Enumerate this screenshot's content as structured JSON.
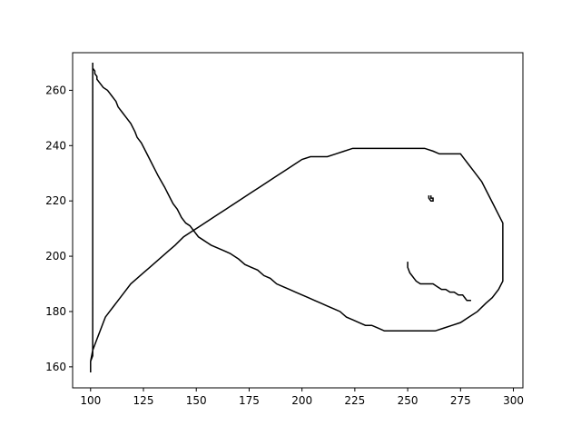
{
  "chart_data": {
    "type": "line",
    "title": "",
    "xlabel": "",
    "ylabel": "",
    "xlim": [
      91.5,
      304.5
    ],
    "ylim": [
      152.4,
      273.6
    ],
    "grid": false,
    "legend": "none",
    "line_color": "#000000",
    "x_ticks": [
      100,
      125,
      150,
      175,
      200,
      225,
      250,
      275,
      300
    ],
    "x_tick_labels": [
      "100",
      "125",
      "150",
      "175",
      "200",
      "225",
      "250",
      "275",
      "300"
    ],
    "y_ticks": [
      160,
      180,
      200,
      220,
      240,
      260
    ],
    "y_tick_labels": [
      "160",
      "180",
      "200",
      "220",
      "240",
      "260"
    ],
    "series": [
      {
        "values": [
          [
            101,
            270
          ],
          [
            101,
            268
          ],
          [
            102,
            267
          ],
          [
            102,
            266
          ],
          [
            103,
            265
          ],
          [
            103,
            264
          ],
          [
            104,
            263
          ],
          [
            105,
            262
          ],
          [
            106,
            261
          ],
          [
            108,
            260
          ],
          [
            109,
            259
          ],
          [
            110,
            258
          ],
          [
            111,
            257
          ],
          [
            112,
            256
          ],
          [
            113,
            254
          ],
          [
            115,
            252
          ],
          [
            117,
            250
          ],
          [
            119,
            248
          ],
          [
            121,
            245
          ],
          [
            122,
            243
          ],
          [
            124,
            241
          ],
          [
            126,
            238
          ],
          [
            128,
            235
          ],
          [
            130,
            232
          ],
          [
            132,
            229
          ],
          [
            135,
            225
          ],
          [
            137,
            222
          ],
          [
            139,
            219
          ],
          [
            141,
            217
          ],
          [
            143,
            214
          ],
          [
            145,
            212
          ],
          [
            147,
            211
          ],
          [
            149,
            209
          ],
          [
            151,
            207
          ],
          [
            153,
            206
          ],
          [
            155,
            205
          ],
          [
            157,
            204
          ],
          [
            160,
            203
          ],
          [
            163,
            202
          ],
          [
            166,
            201
          ],
          [
            170,
            199
          ],
          [
            173,
            197
          ],
          [
            176,
            196
          ],
          [
            179,
            195
          ],
          [
            182,
            193
          ],
          [
            185,
            192
          ],
          [
            188,
            190
          ],
          [
            191,
            189
          ],
          [
            194,
            188
          ],
          [
            197,
            187
          ],
          [
            200,
            186
          ],
          [
            203,
            185
          ],
          [
            206,
            184
          ],
          [
            209,
            183
          ],
          [
            212,
            182
          ],
          [
            215,
            181
          ],
          [
            218,
            180
          ],
          [
            221,
            178
          ],
          [
            224,
            177
          ],
          [
            227,
            176
          ],
          [
            230,
            175
          ],
          [
            233,
            175
          ],
          [
            236,
            174
          ],
          [
            239,
            173
          ],
          [
            243,
            173
          ],
          [
            248,
            173
          ],
          [
            253,
            173
          ],
          [
            258,
            173
          ],
          [
            263,
            173
          ],
          [
            267,
            174
          ],
          [
            271,
            175
          ],
          [
            275,
            176
          ],
          [
            279,
            178
          ],
          [
            283,
            180
          ],
          [
            287,
            183
          ],
          [
            290,
            185
          ],
          [
            293,
            188
          ],
          [
            295,
            191
          ],
          [
            295,
            195
          ],
          [
            295,
            199
          ],
          [
            295,
            204
          ],
          [
            295,
            209
          ],
          [
            295,
            212
          ],
          [
            293,
            215
          ],
          [
            291,
            218
          ],
          [
            289,
            221
          ],
          [
            287,
            224
          ],
          [
            285,
            227
          ],
          [
            283,
            229
          ],
          [
            281,
            231
          ],
          [
            279,
            233
          ],
          [
            277,
            235
          ],
          [
            275,
            237
          ],
          [
            271,
            237
          ],
          [
            268,
            237
          ],
          [
            265,
            237
          ],
          [
            262,
            238
          ],
          [
            258,
            239
          ],
          [
            254,
            239
          ],
          [
            249,
            239
          ],
          [
            244,
            239
          ],
          [
            239,
            239
          ],
          [
            234,
            239
          ],
          [
            229,
            239
          ],
          [
            224,
            239
          ],
          [
            220,
            238
          ],
          [
            216,
            237
          ],
          [
            212,
            236
          ],
          [
            208,
            236
          ],
          [
            204,
            236
          ],
          [
            200,
            235
          ],
          [
            196,
            233
          ],
          [
            192,
            231
          ],
          [
            188,
            229
          ],
          [
            184,
            227
          ],
          [
            180,
            225
          ],
          [
            176,
            223
          ],
          [
            172,
            221
          ],
          [
            168,
            219
          ],
          [
            164,
            217
          ],
          [
            160,
            215
          ],
          [
            156,
            213
          ],
          [
            152,
            211
          ],
          [
            148,
            209
          ],
          [
            144,
            207
          ],
          [
            140,
            204
          ],
          [
            137,
            202
          ],
          [
            134,
            200
          ],
          [
            131,
            198
          ],
          [
            128,
            196
          ],
          [
            125,
            194
          ],
          [
            122,
            192
          ],
          [
            119,
            190
          ],
          [
            116,
            187
          ],
          [
            113,
            184
          ],
          [
            111,
            182
          ],
          [
            109,
            180
          ],
          [
            107,
            178
          ],
          [
            106,
            176
          ],
          [
            105,
            174
          ],
          [
            104,
            172
          ],
          [
            103,
            170
          ],
          [
            102,
            168
          ],
          [
            101,
            166
          ],
          [
            101,
            164
          ],
          [
            100,
            162
          ],
          [
            100,
            160
          ],
          [
            100,
            158
          ],
          [
            100,
            162
          ],
          [
            101,
            166
          ],
          [
            101,
            175
          ],
          [
            101,
            185
          ],
          [
            101,
            200
          ],
          [
            101,
            220
          ],
          [
            101,
            240
          ],
          [
            101,
            255
          ],
          [
            101,
            270
          ]
        ]
      },
      {
        "values": [
          [
            250,
            198
          ],
          [
            250,
            196
          ],
          [
            251,
            194
          ],
          [
            252,
            193
          ],
          [
            253,
            192
          ],
          [
            254,
            191
          ],
          [
            256,
            190
          ],
          [
            258,
            190
          ],
          [
            260,
            190
          ],
          [
            262,
            190
          ],
          [
            264,
            189
          ],
          [
            266,
            188
          ],
          [
            268,
            188
          ],
          [
            270,
            187
          ],
          [
            272,
            187
          ],
          [
            274,
            186
          ],
          [
            276,
            186
          ],
          [
            277,
            185
          ],
          [
            278,
            184
          ],
          [
            280,
            184
          ]
        ]
      },
      {
        "values": [
          [
            260,
            222
          ],
          [
            260,
            221
          ],
          [
            261,
            220
          ],
          [
            262,
            220
          ],
          [
            262,
            221
          ],
          [
            261,
            221
          ],
          [
            261,
            222
          ]
        ]
      }
    ]
  }
}
